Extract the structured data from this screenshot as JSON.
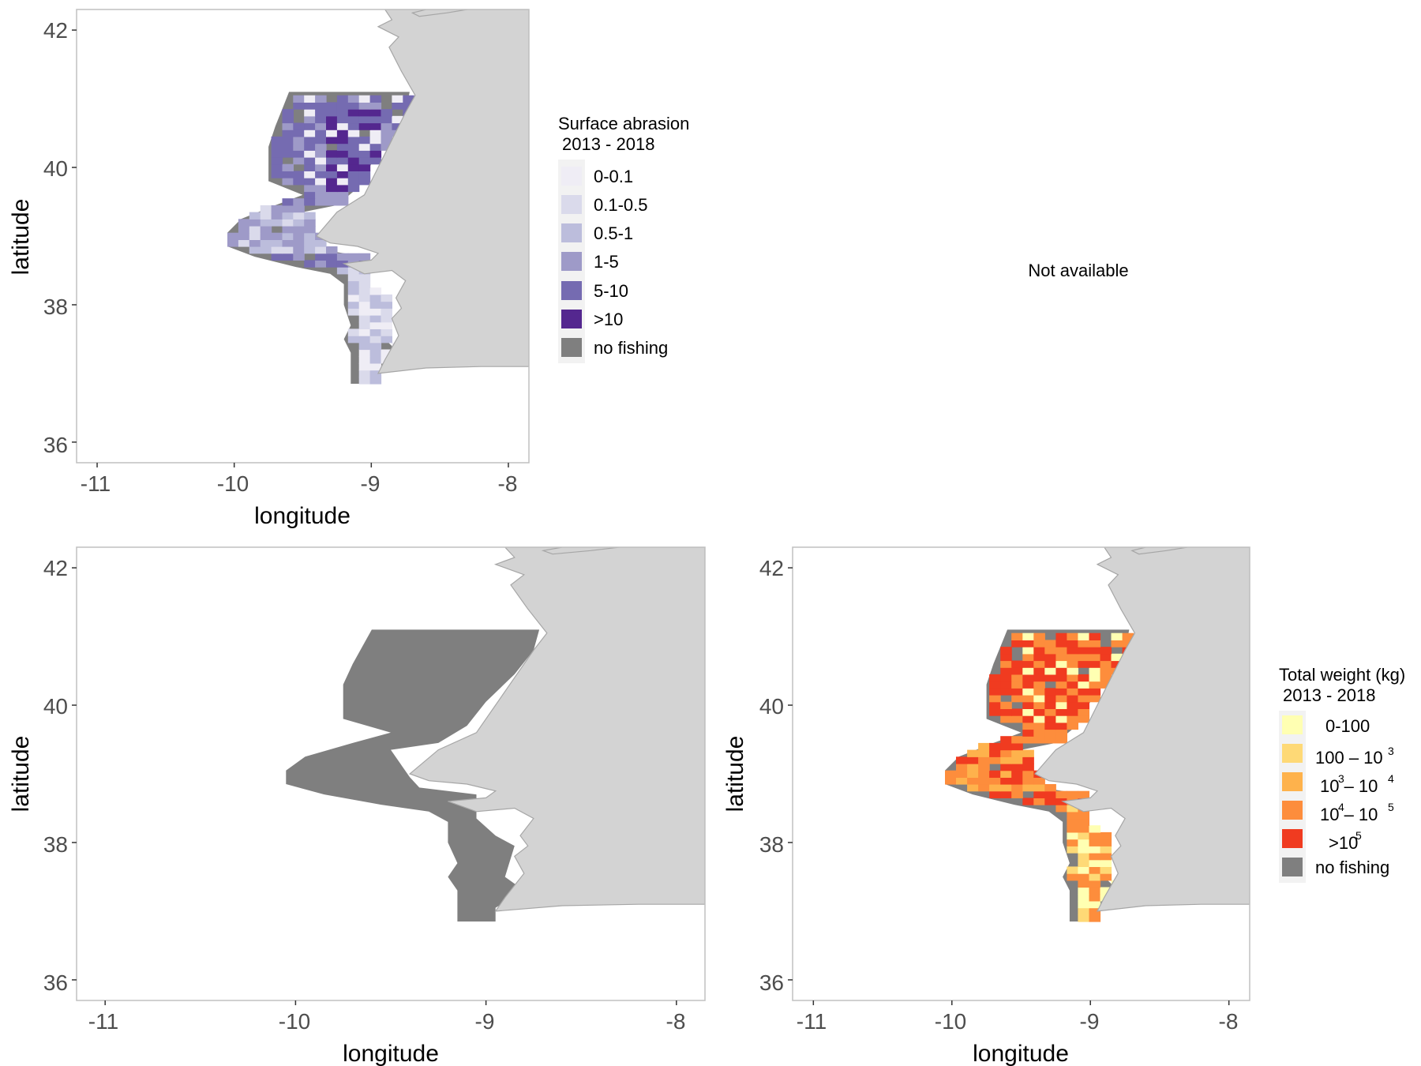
{
  "chart_data": [
    {
      "type": "heatmap",
      "panel": "abrasion",
      "xlabel": "longitude",
      "ylabel": "latitude",
      "xlim": [
        -11.15,
        -7.85
      ],
      "ylim": [
        35.7,
        42.3
      ],
      "x_ticks": [
        "-11",
        "-10",
        "-9",
        "-8"
      ],
      "y_ticks": [
        "42",
        "40",
        "38",
        "36"
      ],
      "legend": {
        "title_line1": "Surface abrasion",
        "title_line2": "2013 - 2018",
        "entries": [
          {
            "label": "0-0.1",
            "color": "#efedf5"
          },
          {
            "label": "0.1-0.5",
            "color": "#dadaeb"
          },
          {
            "label": "0.5-1",
            "color": "#bcbddc"
          },
          {
            "label": "1-5",
            "color": "#9e9ac8"
          },
          {
            "label": "5-10",
            "color": "#756bb1"
          },
          {
            "label": ">10",
            "color": "#54278f"
          },
          {
            "label": "no fishing",
            "color": "#7f7f7f"
          }
        ]
      }
    },
    {
      "type": "other",
      "panel": "not-available",
      "message": "Not available"
    },
    {
      "type": "heatmap",
      "panel": "fishing-footprint",
      "xlabel": "longitude",
      "ylabel": "latitude",
      "xlim": [
        -11.15,
        -7.85
      ],
      "ylim": [
        35.7,
        42.3
      ],
      "x_ticks": [
        "-11",
        "-10",
        "-9",
        "-8"
      ],
      "y_ticks": [
        "42",
        "40",
        "38",
        "36"
      ]
    },
    {
      "type": "heatmap",
      "panel": "total-weight",
      "xlabel": "longitude",
      "ylabel": "latitude",
      "xlim": [
        -11.15,
        -7.85
      ],
      "ylim": [
        35.7,
        42.3
      ],
      "x_ticks": [
        "-11",
        "-10",
        "-9",
        "-8"
      ],
      "y_ticks": [
        "42",
        "40",
        "38",
        "36"
      ],
      "legend": {
        "title_line1": "Total weight (kg)",
        "title_line2": "2013 - 2018",
        "entries": [
          {
            "label": "0-100",
            "color": "#ffffb2"
          },
          {
            "label": "100 – 10",
            "sup": "3",
            "color": "#fed976"
          },
          {
            "label": "10 – 10",
            "sup_a": "3",
            "sup_b": "4",
            "color": "#feb24c"
          },
          {
            "label": "10 – 10",
            "sup_a": "4",
            "sup_b": "5",
            "color": "#fd8d3c"
          },
          {
            "label": ">10",
            "sup": "5",
            "color": "#f03b20"
          },
          {
            "label": "no fishing",
            "color": "#7f7f7f"
          }
        ]
      }
    }
  ],
  "colors": {
    "land": "#d3d3d3",
    "land_border": "#a6a6a6",
    "no_fishing": "#7f7f7f",
    "panel_border": "#c0c0c0"
  }
}
